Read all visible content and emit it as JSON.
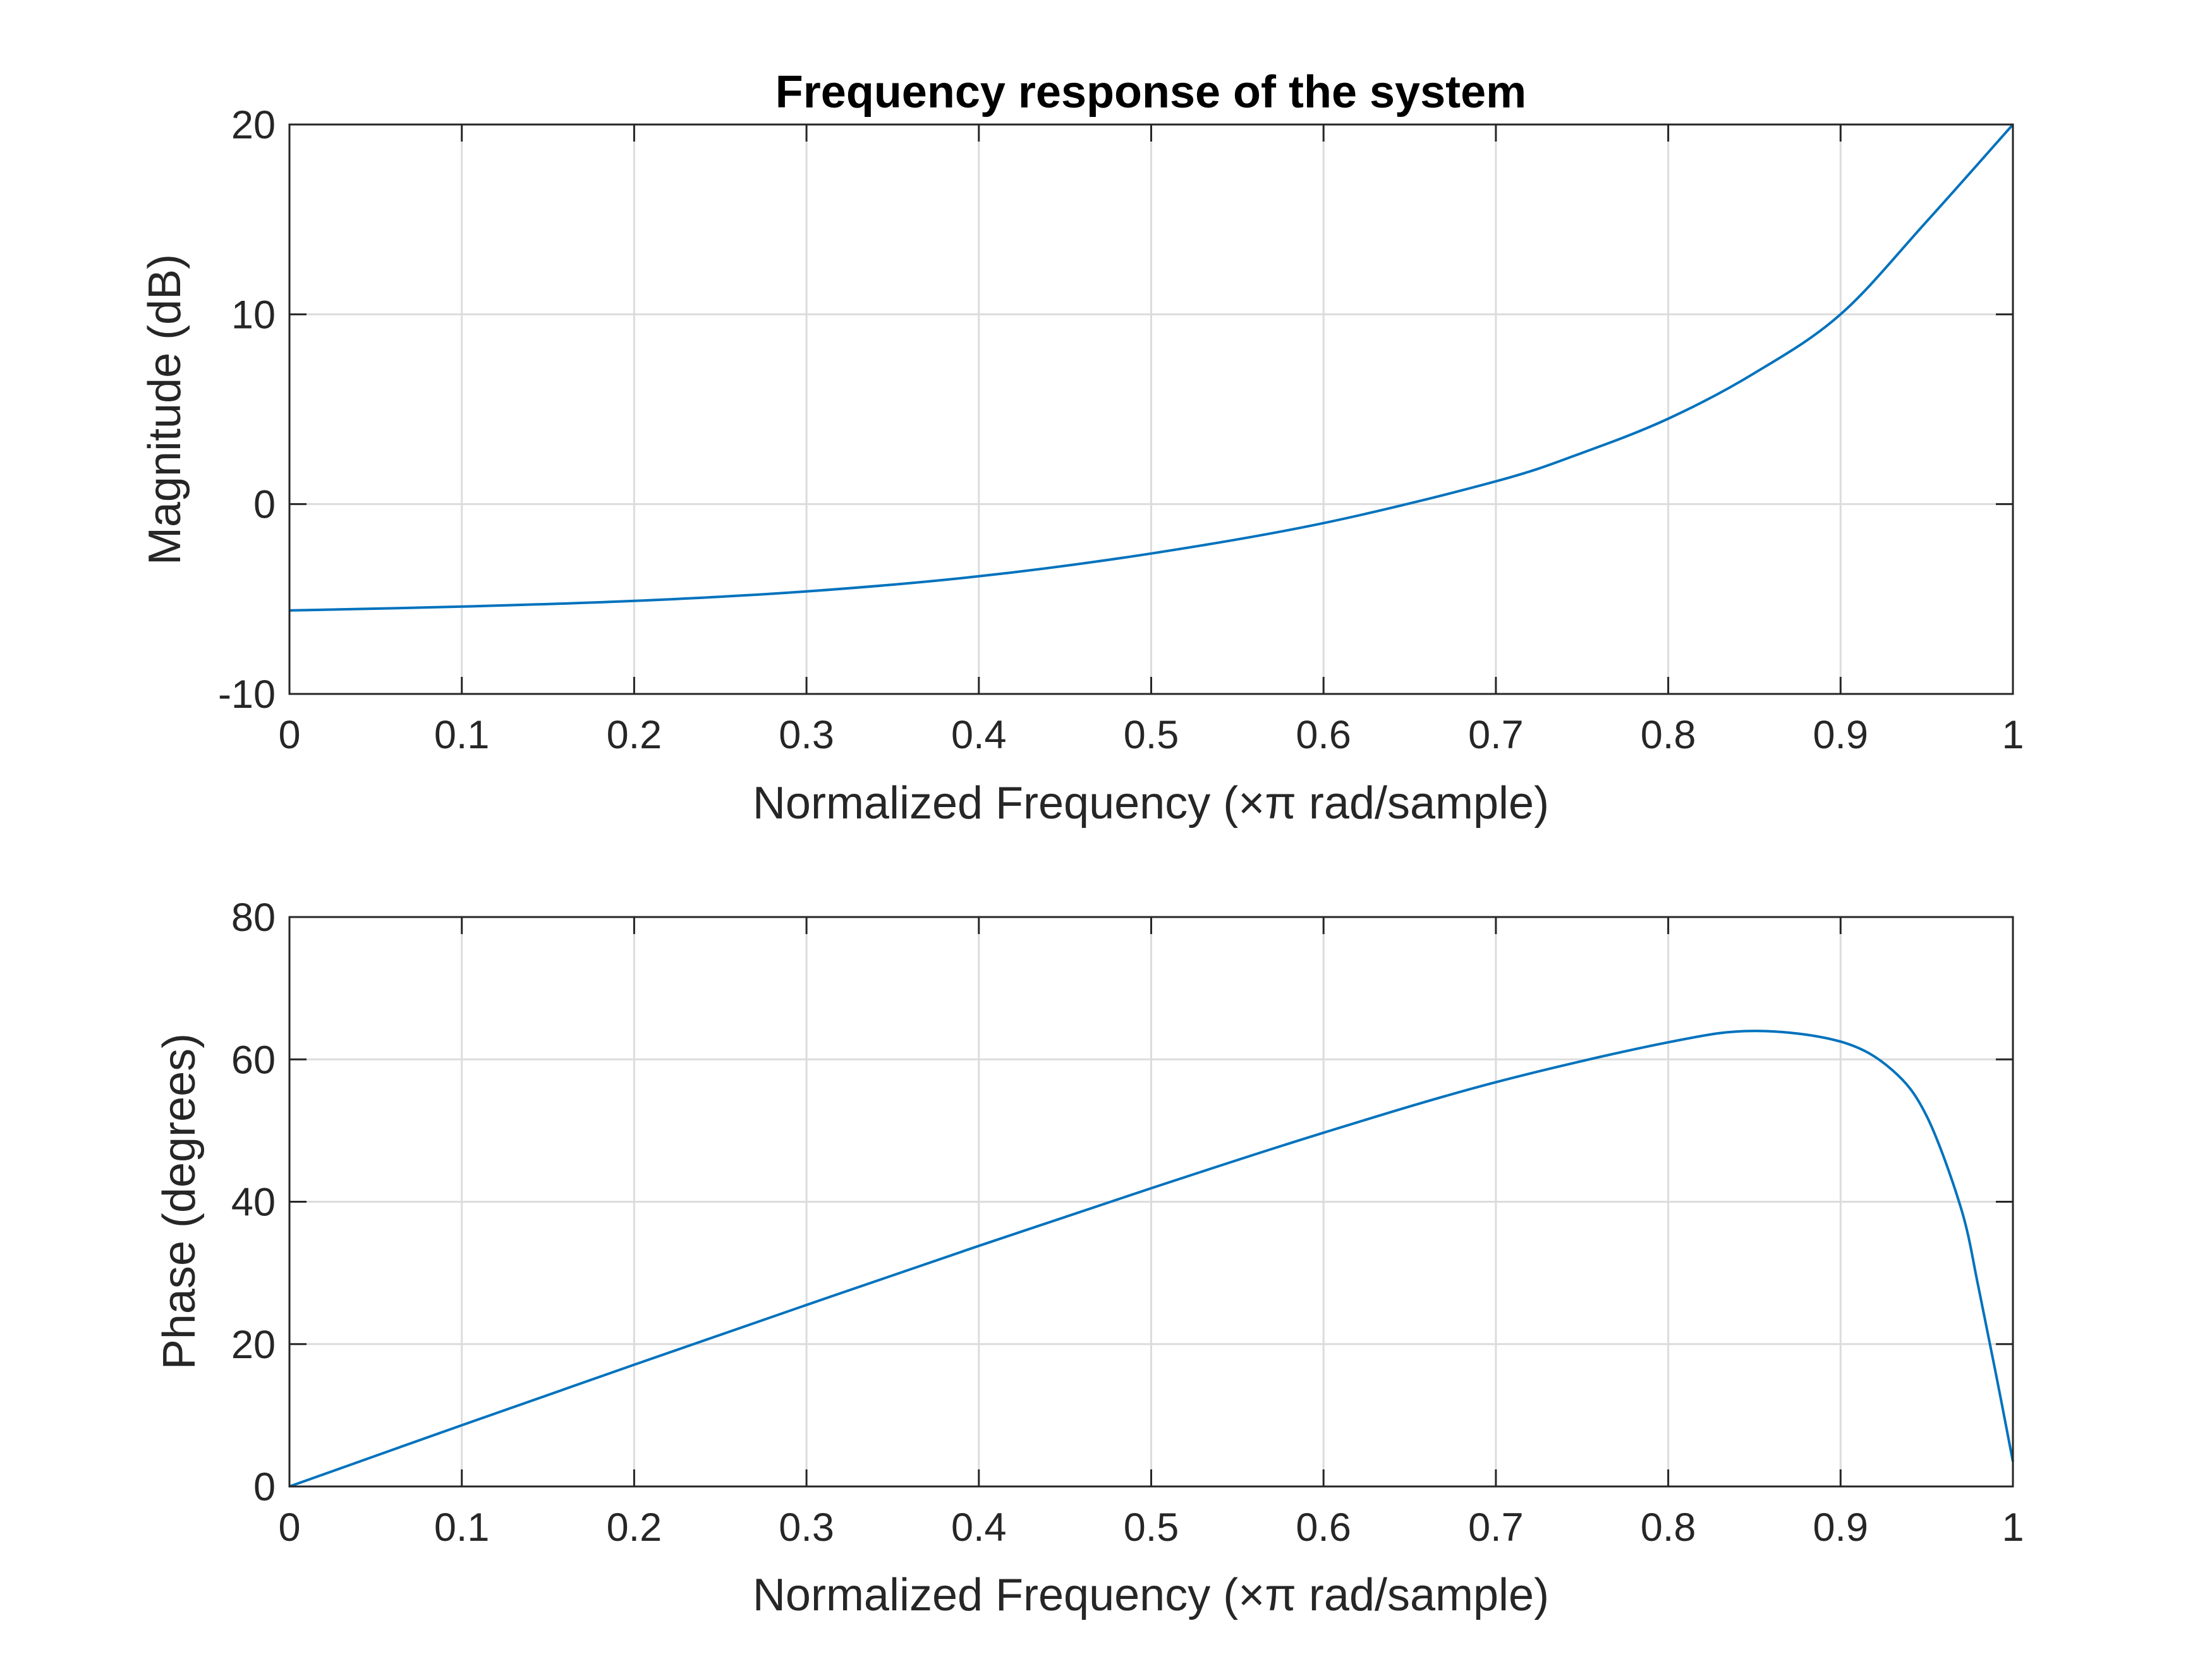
{
  "chart_data": [
    {
      "type": "line",
      "title": "Frequency response of the system",
      "xlabel": "Normalized Frequency  (×π rad/sample)",
      "ylabel": "Magnitude (dB)",
      "xlim": [
        0,
        1
      ],
      "ylim": [
        -10,
        20
      ],
      "xticks": [
        0,
        0.1,
        0.2,
        0.3,
        0.4,
        0.5,
        0.6,
        0.7,
        0.8,
        0.9,
        1
      ],
      "xtick_labels": [
        "0",
        "0.1",
        "0.2",
        "0.3",
        "0.4",
        "0.5",
        "0.6",
        "0.7",
        "0.8",
        "0.9",
        "1"
      ],
      "yticks": [
        -10,
        0,
        10,
        20
      ],
      "ytick_labels": [
        "-10",
        "0",
        "10",
        "20"
      ],
      "grid": true,
      "series": [
        {
          "color": "#0072bd",
          "x": [
            0,
            0.1,
            0.2,
            0.3,
            0.4,
            0.5,
            0.6,
            0.7,
            0.75,
            0.8,
            0.85,
            0.9,
            0.95,
            1
          ],
          "y": [
            -5.6,
            -5.4,
            -5.1,
            -4.6,
            -3.8,
            -2.6,
            -1.0,
            1.2,
            2.7,
            4.5,
            6.9,
            10.0,
            14.9,
            20.0
          ]
        }
      ]
    },
    {
      "type": "line",
      "title": "",
      "xlabel": "Normalized Frequency  (×π rad/sample)",
      "ylabel": "Phase (degrees)",
      "xlim": [
        0,
        1
      ],
      "ylim": [
        0,
        80
      ],
      "xticks": [
        0,
        0.1,
        0.2,
        0.3,
        0.4,
        0.5,
        0.6,
        0.7,
        0.8,
        0.9,
        1
      ],
      "xtick_labels": [
        "0",
        "0.1",
        "0.2",
        "0.3",
        "0.4",
        "0.5",
        "0.6",
        "0.7",
        "0.8",
        "0.9",
        "1"
      ],
      "yticks": [
        0,
        20,
        40,
        60,
        80
      ],
      "ytick_labels": [
        "0",
        "20",
        "40",
        "60",
        "80"
      ],
      "grid": true,
      "series": [
        {
          "color": "#0072bd",
          "x": [
            0,
            0.1,
            0.2,
            0.3,
            0.4,
            0.5,
            0.6,
            0.7,
            0.8,
            0.85,
            0.9,
            0.93,
            0.95,
            0.97,
            0.98,
            0.99,
            1
          ],
          "y": [
            0,
            8.6,
            17.1,
            25.5,
            33.8,
            41.9,
            49.7,
            56.8,
            62.4,
            64.0,
            62.5,
            58.5,
            52.0,
            39.0,
            28.0,
            16.0,
            3.5
          ]
        }
      ]
    }
  ]
}
